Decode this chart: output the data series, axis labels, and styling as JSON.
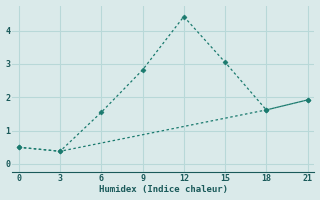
{
  "xlabel": "Humidex (Indice chaleur)",
  "background_color": "#daeaea",
  "grid_color": "#b8d8d8",
  "line_color": "#1a7a6e",
  "line1_x": [
    0,
    3,
    6,
    9,
    12,
    15,
    18,
    21
  ],
  "line1_y": [
    0.5,
    0.38,
    1.55,
    2.82,
    4.42,
    3.05,
    1.62,
    1.92
  ],
  "line2_x": [
    0,
    3,
    18,
    21
  ],
  "line2_y": [
    0.5,
    0.38,
    1.62,
    1.92
  ],
  "xlim": [
    -0.5,
    21.5
  ],
  "ylim": [
    -0.25,
    4.75
  ],
  "xticks": [
    0,
    3,
    6,
    9,
    12,
    15,
    18,
    21
  ],
  "yticks": [
    0,
    1,
    2,
    3,
    4
  ]
}
